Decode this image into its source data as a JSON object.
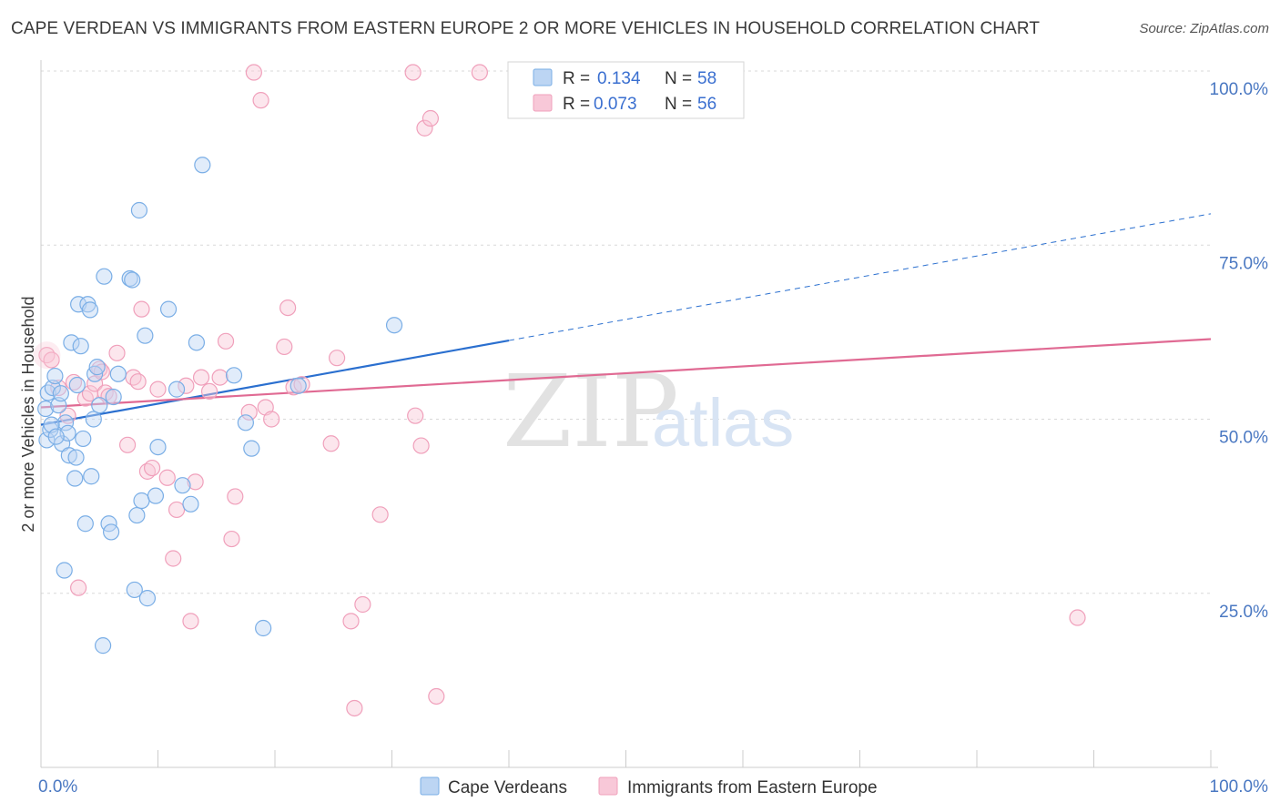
{
  "title": "CAPE VERDEAN VS IMMIGRANTS FROM EASTERN EUROPE 2 OR MORE VEHICLES IN HOUSEHOLD CORRELATION CHART",
  "source": "Source: ZipAtlas.com",
  "watermark": {
    "zip": "ZIP",
    "atlas": "atlas"
  },
  "colors": {
    "blue": "#7aaee6",
    "blue_line": "#2a6fcf",
    "pink": "#f0a0bb",
    "pink_line": "#e06a93",
    "tick_text": "#4a78c2",
    "grid": "#d9d9d9"
  },
  "chart_data": {
    "type": "scatter",
    "title": "CAPE VERDEAN VS IMMIGRANTS FROM EASTERN EUROPE 2 OR MORE VEHICLES IN HOUSEHOLD CORRELATION CHART",
    "xlabel": "",
    "ylabel": "2 or more Vehicles in Household",
    "xlim": [
      0,
      100
    ],
    "ylim": [
      0,
      100
    ],
    "x_tick_labels": [
      "0.0%",
      "100.0%"
    ],
    "y_ticks": [
      25,
      50,
      75,
      100
    ],
    "y_tick_labels": [
      "25.0%",
      "50.0%",
      "75.0%",
      "100.0%"
    ],
    "legend": {
      "rows": [
        {
          "r_label": "R =",
          "r_value": "0.134",
          "n_label": "N =",
          "n_value": "58"
        },
        {
          "r_label": "R =",
          "r_value": "0.073",
          "n_label": "N =",
          "n_value": "56"
        }
      ]
    },
    "series": [
      {
        "name": "Cape Verdeans",
        "color": "#7aaee6",
        "trend": {
          "x0": 0,
          "y0": 49.2,
          "x1": 40,
          "y1": 61.3,
          "dash_x1": 100,
          "dash_y1": 79.5
        },
        "points": [
          [
            0.4,
            51.5
          ],
          [
            0.6,
            53.8
          ],
          [
            0.5,
            47.0
          ],
          [
            0.8,
            48.5
          ],
          [
            1.0,
            54.5
          ],
          [
            1.2,
            56.2
          ],
          [
            1.5,
            52.0
          ],
          [
            1.7,
            53.7
          ],
          [
            1.8,
            46.5
          ],
          [
            2.1,
            49.5
          ],
          [
            2.3,
            48.0
          ],
          [
            2.4,
            44.8
          ],
          [
            2.6,
            61.0
          ],
          [
            2.9,
            41.5
          ],
          [
            3.0,
            44.5
          ],
          [
            3.1,
            54.9
          ],
          [
            3.2,
            66.5
          ],
          [
            3.4,
            60.5
          ],
          [
            3.6,
            47.2
          ],
          [
            3.8,
            35.0
          ],
          [
            4.0,
            66.5
          ],
          [
            4.2,
            65.7
          ],
          [
            4.3,
            41.8
          ],
          [
            4.5,
            50.0
          ],
          [
            4.6,
            56.5
          ],
          [
            4.8,
            57.5
          ],
          [
            5.0,
            52.0
          ],
          [
            5.3,
            17.5
          ],
          [
            5.4,
            70.5
          ],
          [
            5.8,
            35.0
          ],
          [
            6.0,
            33.8
          ],
          [
            6.2,
            53.2
          ],
          [
            6.6,
            56.5
          ],
          [
            7.6,
            70.2
          ],
          [
            7.8,
            70.0
          ],
          [
            8.0,
            25.5
          ],
          [
            8.2,
            36.2
          ],
          [
            8.4,
            80.0
          ],
          [
            8.6,
            38.3
          ],
          [
            8.9,
            62.0
          ],
          [
            9.1,
            24.3
          ],
          [
            9.8,
            39.0
          ],
          [
            10.0,
            46.0
          ],
          [
            10.9,
            65.8
          ],
          [
            11.6,
            54.3
          ],
          [
            12.1,
            40.5
          ],
          [
            12.8,
            37.8
          ],
          [
            13.3,
            61.0
          ],
          [
            13.8,
            86.5
          ],
          [
            16.5,
            56.3
          ],
          [
            17.5,
            49.5
          ],
          [
            18.0,
            45.8
          ],
          [
            19.0,
            20.0
          ],
          [
            22.0,
            54.8
          ],
          [
            30.2,
            63.5
          ],
          [
            2.0,
            28.3
          ],
          [
            0.9,
            49.2
          ],
          [
            1.3,
            47.5
          ]
        ]
      },
      {
        "name": "Immigrants from Eastern Europe",
        "color": "#f0a0bb",
        "trend": {
          "x0": 0,
          "y0": 51.7,
          "x1": 100,
          "y1": 61.5
        },
        "points": [
          [
            0.5,
            59.2
          ],
          [
            0.9,
            58.5
          ],
          [
            1.5,
            54.5
          ],
          [
            2.3,
            50.5
          ],
          [
            2.8,
            55.3
          ],
          [
            3.2,
            25.8
          ],
          [
            3.8,
            53.0
          ],
          [
            4.2,
            53.7
          ],
          [
            4.6,
            55.1
          ],
          [
            5.0,
            57.2
          ],
          [
            5.5,
            53.8
          ],
          [
            5.8,
            53.3
          ],
          [
            6.5,
            59.5
          ],
          [
            7.4,
            46.3
          ],
          [
            7.9,
            56.0
          ],
          [
            8.3,
            55.4
          ],
          [
            8.6,
            65.8
          ],
          [
            9.1,
            42.5
          ],
          [
            9.5,
            43.0
          ],
          [
            10.0,
            54.3
          ],
          [
            10.8,
            41.6
          ],
          [
            11.3,
            30.0
          ],
          [
            11.6,
            37.0
          ],
          [
            12.4,
            54.8
          ],
          [
            12.8,
            21.0
          ],
          [
            13.2,
            41.0
          ],
          [
            13.7,
            56.0
          ],
          [
            14.4,
            54.0
          ],
          [
            15.3,
            56.0
          ],
          [
            15.8,
            61.2
          ],
          [
            16.3,
            32.8
          ],
          [
            16.6,
            38.9
          ],
          [
            17.8,
            51.0
          ],
          [
            18.2,
            99.8
          ],
          [
            18.8,
            95.8
          ],
          [
            19.2,
            51.7
          ],
          [
            19.7,
            50.0
          ],
          [
            20.8,
            60.4
          ],
          [
            21.1,
            66.0
          ],
          [
            21.6,
            54.6
          ],
          [
            22.3,
            55.0
          ],
          [
            24.8,
            46.5
          ],
          [
            25.3,
            58.8
          ],
          [
            26.5,
            21.0
          ],
          [
            26.8,
            8.5
          ],
          [
            27.5,
            23.4
          ],
          [
            29.0,
            36.3
          ],
          [
            31.8,
            99.8
          ],
          [
            32.0,
            50.5
          ],
          [
            32.5,
            46.2
          ],
          [
            32.8,
            91.8
          ],
          [
            33.3,
            93.2
          ],
          [
            33.8,
            10.2
          ],
          [
            37.5,
            99.8
          ],
          [
            88.6,
            21.5
          ],
          [
            5.2,
            56.8
          ]
        ]
      }
    ]
  },
  "bottom_legend": [
    "Cape Verdeans",
    "Immigrants from Eastern Europe"
  ]
}
